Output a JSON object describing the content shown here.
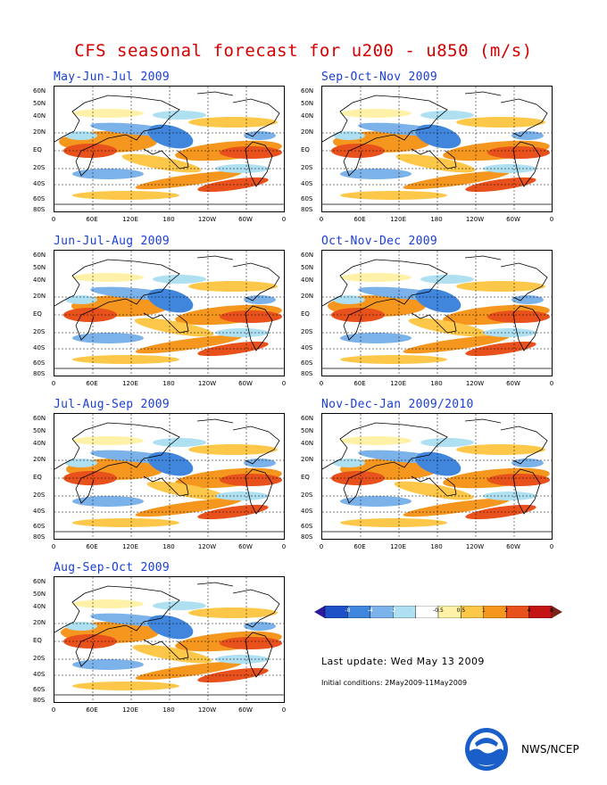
{
  "header": {
    "title": "CFS seasonal forecast for u200 - u850 (m/s)"
  },
  "axes": {
    "lat_labels": [
      "60N",
      "50N",
      "40N",
      "20N",
      "EQ",
      "20S",
      "40S",
      "60S",
      "80S"
    ],
    "lon_labels": [
      "0",
      "60E",
      "120E",
      "180",
      "120W",
      "60W",
      "0"
    ]
  },
  "panels": [
    {
      "title": "May-Jun-Jul 2009"
    },
    {
      "title": "Sep-Oct-Nov 2009"
    },
    {
      "title": "Jun-Jul-Aug 2009"
    },
    {
      "title": "Oct-Nov-Dec 2009"
    },
    {
      "title": "Jul-Aug-Sep 2009"
    },
    {
      "title": "Nov-Dec-Jan 2009/2010"
    },
    {
      "title": "Aug-Sep-Oct 2009"
    }
  ],
  "colorbar": {
    "labels": [
      "-8",
      "-4",
      "-2",
      "-1",
      "-0.5",
      "0.5",
      "1",
      "2",
      "4",
      "8"
    ],
    "colors": [
      "#2a1a9c",
      "#1e50c8",
      "#3f86dc",
      "#7cb2ea",
      "#aee0f2",
      "#ffffff",
      "#fff2a8",
      "#fdc84a",
      "#f5961e",
      "#e8501c",
      "#c41414",
      "#7a2418"
    ]
  },
  "footer": {
    "last_update": "Last update: Wed May 13 2009",
    "initial_conditions": "Initial conditions: 2May2009-11May2009",
    "agency": "NWS/NCEP"
  }
}
